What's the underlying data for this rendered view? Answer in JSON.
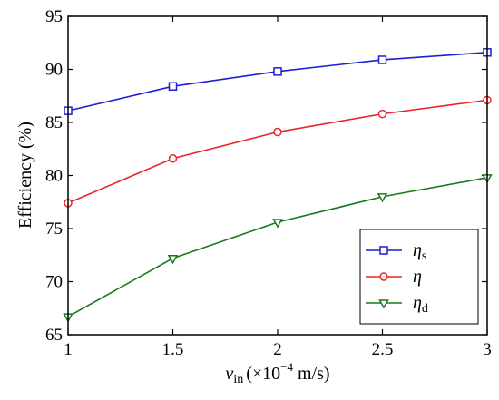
{
  "chart_data": {
    "type": "line",
    "xlabel": {
      "var": "v",
      "sub": "in",
      "unit_open": "(×10",
      "exp": "−4",
      "unit_close": " m/s)"
    },
    "ylabel": "Efficiency (%)",
    "xlim": [
      1,
      3
    ],
    "ylim": [
      65,
      95
    ],
    "x_ticks": [
      "1",
      "1.5",
      "2",
      "2.5",
      "3"
    ],
    "y_ticks": [
      "65",
      "70",
      "75",
      "80",
      "85",
      "90",
      "95"
    ],
    "x": [
      1,
      1.5,
      2,
      2.5,
      3
    ],
    "grid": false,
    "legend_position": "lower-right",
    "series": [
      {
        "symbol": "η",
        "sub": "s",
        "color": "#1f1fd0",
        "marker": "square",
        "values": [
          86.1,
          88.4,
          89.8,
          90.9,
          91.6
        ]
      },
      {
        "symbol": "η",
        "sub": "",
        "color": "#e8262a",
        "marker": "circle",
        "values": [
          77.4,
          81.6,
          84.1,
          85.8,
          87.1
        ]
      },
      {
        "symbol": "η",
        "sub": "d",
        "color": "#1a7a1a",
        "marker": "triangle-down",
        "values": [
          66.7,
          72.2,
          75.6,
          78.0,
          79.8
        ]
      }
    ]
  }
}
